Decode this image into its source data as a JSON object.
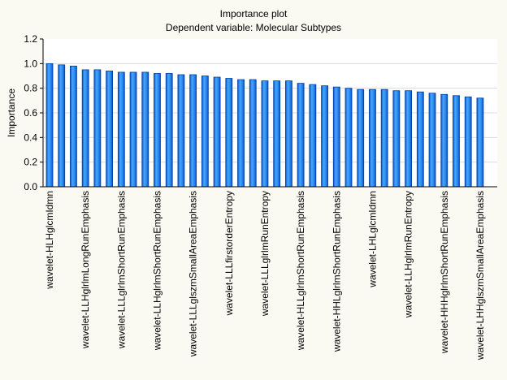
{
  "chart_data": {
    "type": "bar",
    "title": "Importance plot",
    "subtitle": "Dependent variable: Molecular  Subtypes",
    "xlabel": "",
    "ylabel": "Importance",
    "ylim": [
      0,
      1.2
    ],
    "yticks": [
      "0.0",
      "0.2",
      "0.4",
      "0.6",
      "0.8",
      "1.0",
      "1.2"
    ],
    "grid": true,
    "categories": [
      "wavelet-HLHglcmIdmn",
      "",
      "",
      "wavelet-LLHglrlmLongRunEmphasis",
      "",
      "",
      "wavelet-LLLglrlmShortRunEmphasis",
      "",
      "",
      "wavelet-LLHglrlmShortRunEmphasis",
      "",
      "",
      "wavelet-LLLglszmSmallAreaEmphasis",
      "",
      "",
      "wavelet-LLLfirstorderEntropy",
      "",
      "",
      "wavelet-LLLglrlmRunEntropy",
      "",
      "",
      "wavelet-HLLglrlmShortRunEmphasis",
      "",
      "",
      "wavelet-HHLglrlmShortRunEmphasis",
      "",
      "",
      "wavelet-LHLglcmIdmn",
      "",
      "",
      "wavelet-LLHglrlmRunEntropy",
      "",
      "",
      "wavelet-HHHglrlmShortRunEmphasis",
      "",
      "",
      "wavelet-LHHglszmSmallAreaEmphasis"
    ],
    "values": [
      1.0,
      0.99,
      0.98,
      0.95,
      0.95,
      0.94,
      0.93,
      0.93,
      0.93,
      0.92,
      0.92,
      0.91,
      0.91,
      0.9,
      0.89,
      0.88,
      0.87,
      0.87,
      0.86,
      0.86,
      0.86,
      0.84,
      0.83,
      0.82,
      0.81,
      0.8,
      0.79,
      0.79,
      0.79,
      0.78,
      0.78,
      0.77,
      0.76,
      0.75,
      0.74,
      0.73,
      0.72
    ],
    "bar_color": "#2e8ef0",
    "bar_outline": "#003fa0"
  }
}
